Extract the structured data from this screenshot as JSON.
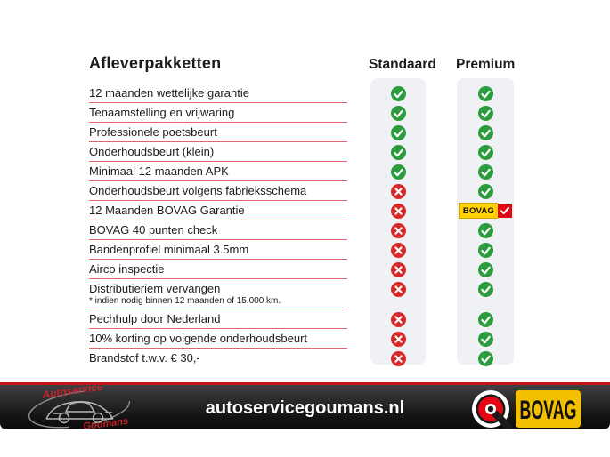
{
  "title": "Afleverpakketten",
  "columns": {
    "standaard": "Standaard",
    "premium": "Premium"
  },
  "features": [
    {
      "label": "12 maanden wettelijke garantie",
      "standaard": "check",
      "premium": "check"
    },
    {
      "label": "Tenaamstelling en vrijwaring",
      "standaard": "check",
      "premium": "check"
    },
    {
      "label": "Professionele poetsbeurt",
      "standaard": "check",
      "premium": "check"
    },
    {
      "label": "Onderhoudsbeurt (klein)",
      "standaard": "check",
      "premium": "check"
    },
    {
      "label": "Minimaal 12 maanden APK",
      "standaard": "check",
      "premium": "check"
    },
    {
      "label": "Onderhoudsbeurt volgens fabrieksschema",
      "standaard": "cross",
      "premium": "check"
    },
    {
      "label": "12 Maanden BOVAG Garantie",
      "standaard": "cross",
      "premium": "bovag"
    },
    {
      "label": "BOVAG 40 punten check",
      "standaard": "cross",
      "premium": "check"
    },
    {
      "label": "Bandenprofiel minimaal 3.5mm",
      "standaard": "cross",
      "premium": "check"
    },
    {
      "label": "Airco inspectie",
      "standaard": "cross",
      "premium": "check"
    },
    {
      "label": "Distributieriem vervangen",
      "note": "* indien nodig binnen 12 maanden of 15.000 km.",
      "standaard": "cross",
      "premium": "check"
    },
    {
      "label": "Pechhulp door Nederland",
      "standaard": "cross",
      "premium": "check"
    },
    {
      "label": "10% korting op volgende onderhoudsbeurt",
      "standaard": "cross",
      "premium": "check"
    },
    {
      "label": "Brandstof t.w.v. € 30,-",
      "standaard": "cross",
      "premium": "check",
      "no_underline": true
    }
  ],
  "bovag_badge": {
    "label": "BOVAG"
  },
  "footer": {
    "website": "autoservicegoumans.nl",
    "logo": {
      "top": "Autoservice",
      "bottom": "Goumans"
    },
    "bovag": {
      "label": "BOVAG"
    }
  },
  "colors": {
    "check_green": "#2b9c3e",
    "cross_red": "#d42a29",
    "underline_red": "#e0656d",
    "column_bg": "#f0f1f4",
    "bovag_yellow": "#ffd200",
    "bovag_check_red": "#e30613",
    "footer_line_red": "#c3161c"
  }
}
